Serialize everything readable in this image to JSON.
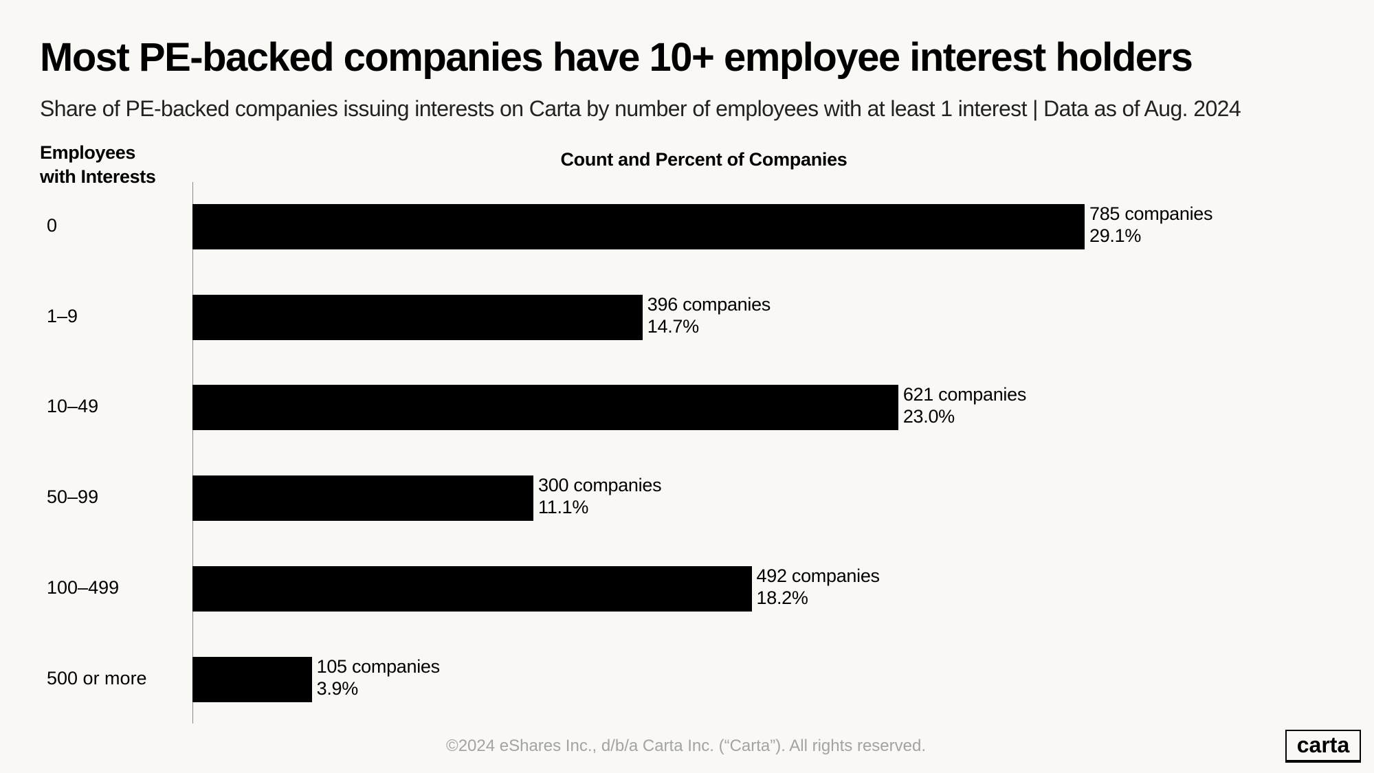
{
  "header": {
    "title": "Most PE-backed companies have 10+ employee interest holders",
    "subtitle": "Share of PE-backed companies issuing interests on Carta by number of employees with  at least 1 interest | Data as of Aug. 2024"
  },
  "chart_data": {
    "type": "bar",
    "orientation": "horizontal",
    "title": "Count and Percent of Companies",
    "ylabel_lines": [
      "Employees",
      "with Interests"
    ],
    "xlabel": "Count and Percent of Companies",
    "categories": [
      "0",
      "1–9",
      "10–49",
      "50–99",
      "100–499",
      "500 or more"
    ],
    "values": [
      785,
      396,
      621,
      300,
      492,
      105
    ],
    "percents": [
      "29.1%",
      "14.7%",
      "23.0%",
      "11.1%",
      "18.2%",
      "3.9%"
    ],
    "count_labels": [
      "785 companies",
      "396 companies",
      "621 companies",
      "300 companies",
      "492 companies",
      "105 companies"
    ],
    "xlim": [
      0,
      785
    ],
    "grid": false,
    "bar_color": "#000000"
  },
  "footer": {
    "copyright": "©2024 eShares Inc., d/b/a Carta Inc. (“Carta”). All rights reserved.",
    "logo": "carta"
  }
}
